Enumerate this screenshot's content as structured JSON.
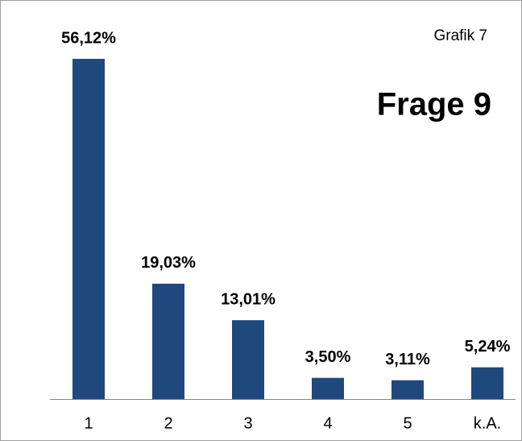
{
  "chart_data": {
    "type": "bar",
    "title": "Frage 9",
    "annotation": "Grafik 7",
    "categories": [
      "1",
      "2",
      "3",
      "4",
      "5",
      "k.A."
    ],
    "values": [
      56.12,
      19.03,
      13.01,
      3.5,
      3.11,
      5.24
    ],
    "value_labels": [
      "56,12%",
      "19,03%",
      "13,01%",
      "3,50%",
      "3,11%",
      "5,24%"
    ],
    "color": "#1f497d"
  }
}
